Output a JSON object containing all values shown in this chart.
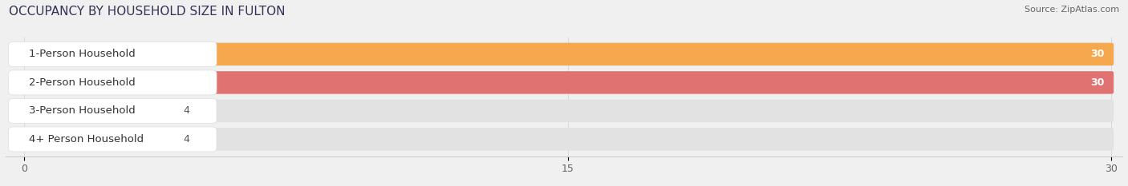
{
  "title": "OCCUPANCY BY HOUSEHOLD SIZE IN FULTON",
  "source": "Source: ZipAtlas.com",
  "categories": [
    "1-Person Household",
    "2-Person Household",
    "3-Person Household",
    "4+ Person Household"
  ],
  "values": [
    30,
    30,
    4,
    4
  ],
  "bar_colors": [
    "#F5A84E",
    "#E07272",
    "#AABFDE",
    "#C9AACC"
  ],
  "xlim": [
    0,
    30
  ],
  "xticks": [
    0,
    15,
    30
  ],
  "label_color_white": "#ffffff",
  "label_color_dark": "#555555",
  "background_color": "#f0f0f0",
  "bar_bg_color": "#e2e2e2",
  "title_fontsize": 11,
  "source_fontsize": 8,
  "tick_fontsize": 9,
  "bar_label_fontsize": 9,
  "category_label_fontsize": 9.5
}
